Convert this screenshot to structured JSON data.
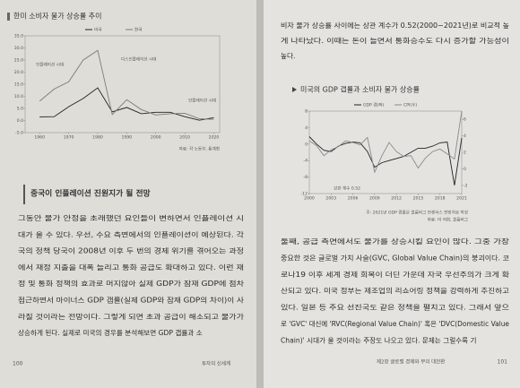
{
  "chart_data": [
    {
      "type": "line",
      "title": "한미 소비자 물가 상승률 추이",
      "x": [
        1960,
        1965,
        1970,
        1975,
        1980,
        1985,
        1990,
        1995,
        2000,
        2005,
        2010,
        2015,
        2020
      ],
      "xlim": [
        1955,
        2022
      ],
      "xticks": [
        1960,
        1970,
        1980,
        1990,
        2000,
        2010,
        2020
      ],
      "ylim": [
        -5,
        35
      ],
      "yticks": [
        {
          "value": -5,
          "label": "-5.0"
        },
        {
          "value": 0,
          "label": "0.0"
        },
        {
          "value": 5,
          "label": "5.0"
        },
        {
          "value": 10,
          "label": "10.0"
        },
        {
          "value": 15,
          "label": "15.0"
        },
        {
          "value": 20,
          "label": "20.0"
        },
        {
          "value": 25,
          "label": "25.0"
        },
        {
          "value": 30,
          "label": "30.0"
        },
        {
          "value": 35,
          "label": "35.0"
        }
      ],
      "series": [
        {
          "name": "미국",
          "color": "#222222",
          "values": [
            1.5,
            1.6,
            5.7,
            9.1,
            13.5,
            3.6,
            5.4,
            2.8,
            3.4,
            3.4,
            1.6,
            0.1,
            1.2
          ]
        },
        {
          "name": "한국",
          "color": "#7a7a7a",
          "values": [
            8,
            13,
            16,
            25,
            29,
            2.5,
            8.6,
            4.5,
            2.3,
            2.8,
            3,
            0.7,
            0.5
          ]
        }
      ],
      "annotations": [
        "인플레이션 시대",
        "디스인플레이션 시대",
        "인플레이션 시대"
      ],
      "source": "자료: 각 노동부, 통계청"
    },
    {
      "type": "line",
      "title": "미국의 GDP 갭률과 소비자 물가 상승률",
      "x": [
        2000,
        2001,
        2002,
        2003,
        2004,
        2005,
        2006,
        2007,
        2008,
        2009,
        2010,
        2011,
        2012,
        2013,
        2014,
        2015,
        2016,
        2017,
        2018,
        2019,
        2020,
        2021
      ],
      "xlim": [
        2000,
        2021
      ],
      "xticks": [
        2000,
        2003,
        2006,
        2009,
        2012,
        2015,
        2018,
        2021
      ],
      "ylim": [
        -12,
        8
      ],
      "yticks": [
        -12,
        -8,
        -4,
        0,
        4,
        8
      ],
      "y2lim": [
        -3,
        7
      ],
      "y2ticks": [
        -2,
        0,
        2,
        4,
        6
      ],
      "series": [
        {
          "name": "GDP 갭(좌)",
          "color": "#222222",
          "values": [
            1.8,
            0,
            -1.5,
            -1.8,
            -0.5,
            0.2,
            0.5,
            0.3,
            -1.8,
            -5.6,
            -4.5,
            -4,
            -3.5,
            -3,
            -2,
            -1,
            -1,
            -0.5,
            0.3,
            0.5,
            -10,
            1.5
          ]
        },
        {
          "name": "CPI(우)",
          "color": "#8a8a8a",
          "axis": "y2",
          "values": [
            3.4,
            2.8,
            1.6,
            2.3,
            2.7,
            3.4,
            3.2,
            2.9,
            3.8,
            -0.4,
            1.6,
            3.2,
            2.1,
            1.5,
            1.6,
            0.1,
            1.3,
            2.1,
            2.4,
            1.8,
            1.2,
            7
          ]
        }
      ],
      "annotations": [
        "상관 계수 0.52"
      ],
      "note": "주: 2021년 GDP 갭률은 블룸버그 컨센서스 전망치로 작성",
      "source": "자료: 미 의회, 블룸버그"
    }
  ],
  "document": {
    "left": {
      "section_title": "중국이 인플레이션 진원지가 될 전망",
      "paragraphs": [
        [
          "그동안 물가 안정을 초래했던 요인들이 변하면서 인플레이션 시",
          "대가 올 수 있다. 우선, 수요 측면에서의 인플레이션이 예상된다. 각",
          "국의 정책 당국이 2008년 이후 두 번의 경제 위기를 겪어오는 과정",
          "에서 재정 지출을 대폭 늘리고 통화 공급도 확대하고 있다. 이런 재",
          "정 및 통화 정책의 효과로 머지않아 실제 GDP가 잠재 GDP에 점차",
          "접근하면서 마이너스 GDP 갭률(실제 GDP와 잠재 GDP의 차이)이 사",
          "라질 것이라는 전망이다. 그렇게 되면 초과 공급이 해소되고 물가가",
          "상승하게 된다. 실제로 미국의 경우를 분석해보면 GDP 갭률과 소"
        ]
      ],
      "page_number": "100",
      "footer": "투자의 신세계"
    },
    "right": {
      "top_paragraphs": [
        [
          "비자 물가 상승률 사이에는 상관 계수가 0.52(2000~2021년)로 비교적 높",
          "게 나타났다. 이때는 돈이 늘면서 통화승수도 다시 증가할 가능성이",
          "높다."
        ]
      ],
      "paragraphs": [
        [
          "둘째, 공급 측면에서도 물가를 상승시킬 요인이 많다. 그중 가장",
          "중요한 것은 글로벌 가치 사슬(GVC, Global Value Chain)의 붕괴이다. 코",
          "로나19 이후 세계 경제 회복이 더딘 가운데 자국 우선주의가 크게 확",
          "산되고 있다. 미국 정부는 제조업의 리쇼어링 정책을 강력하게 추진하고",
          "있다. 일본 등 주요 선진국도 같은 정책을 펼치고 있다. 그래서 앞으",
          "로 'GVC' 대신에 'RVC(Regional Value Chain)' 혹은 'DVC(Domestic Value",
          "Chain)' 시대가 올 것이라는 주장도 나오고 있다. 문제는 그럴수록 기"
        ]
      ],
      "page_number": "101",
      "footer": "제2장 글로벌 경제와 부의 대전환"
    }
  }
}
